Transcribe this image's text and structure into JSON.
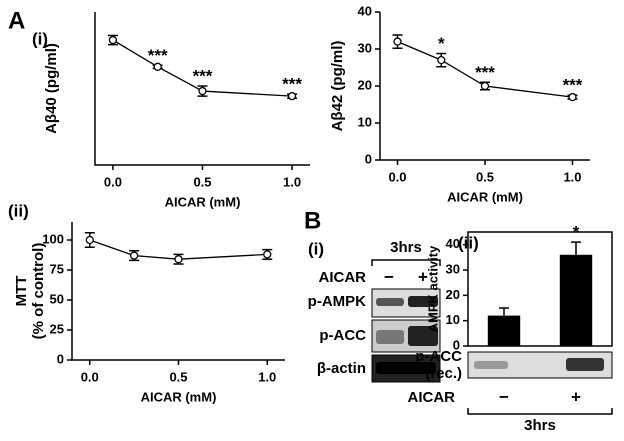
{
  "panels": {
    "a": "A",
    "a_i": "(i)",
    "a_ii": "(ii)",
    "b": "B",
    "b_i": "(i)",
    "b_ii": "(ii)"
  },
  "blot": {
    "time": "3hrs",
    "treatment": "AICAR",
    "lanes": [
      "−",
      "+"
    ],
    "rows": [
      "p-AMPK",
      "p-ACC",
      "β-actin"
    ]
  },
  "chart_data": [
    {
      "type": "line",
      "ylabel": [
        "Aβ40 (pg/ml)"
      ],
      "xlabel": "AICAR (mM)",
      "x": [
        0,
        0.25,
        0.5,
        1.0
      ],
      "xlim": [
        -0.1,
        1.1
      ],
      "xticks": [
        {
          "value": 0,
          "label": "0.0"
        },
        {
          "value": 0.5,
          "label": "0.5"
        },
        {
          "value": 1,
          "label": "1.0"
        }
      ],
      "ylim": [
        0,
        600
      ],
      "series": [
        {
          "color": "#000000",
          "values": [
            490,
            385,
            290,
            270
          ],
          "errors": [
            18,
            6,
            20,
            8
          ],
          "annotations": [
            null,
            "***",
            "***",
            "***"
          ]
        }
      ]
    },
    {
      "type": "line",
      "ylabel": [
        "Aβ42 (pg/ml)"
      ],
      "xlabel": "AICAR (mM)",
      "x": [
        0,
        0.25,
        0.5,
        1.0
      ],
      "xlim": [
        -0.1,
        1.1
      ],
      "xticks": [
        {
          "value": 0,
          "label": "0.0"
        },
        {
          "value": 0.5,
          "label": "0.5"
        },
        {
          "value": 1,
          "label": "1.0"
        }
      ],
      "ylim": [
        0,
        40
      ],
      "yticks": [
        0,
        10,
        20,
        30,
        40
      ],
      "series": [
        {
          "color": "#000000",
          "values": [
            32,
            27,
            20,
            17
          ],
          "errors": [
            1.8,
            1.8,
            1.0,
            0.5
          ],
          "annotations": [
            null,
            "*",
            "***",
            "***"
          ]
        }
      ]
    },
    {
      "type": "line",
      "ylabel": [
        "MTT",
        "(% of control)"
      ],
      "xlabel": "AICAR (mM)",
      "x": [
        0,
        0.25,
        0.5,
        1.0
      ],
      "xlim": [
        -0.1,
        1.1
      ],
      "xticks": [
        {
          "value": 0,
          "label": "0.0"
        },
        {
          "value": 0.5,
          "label": "0.5"
        },
        {
          "value": 1,
          "label": "1.0"
        }
      ],
      "ylim": [
        0,
        115
      ],
      "yticks": [
        0,
        25,
        50,
        75,
        100
      ],
      "series": [
        {
          "color": "#000000",
          "values": [
            100,
            87,
            84,
            88
          ],
          "errors": [
            6,
            4,
            4,
            4
          ]
        }
      ]
    },
    {
      "type": "bar",
      "ylabel": [
        "AMPK activity"
      ],
      "xlabel": "AICAR",
      "group_label": "3hrs",
      "blot_label": [
        "p-ACC",
        "(rec.)"
      ],
      "categories": [
        "−",
        "+"
      ],
      "ylim": [
        0,
        45
      ],
      "yticks": [
        0,
        10,
        20,
        30,
        40
      ],
      "series": [
        {
          "color": "#000000",
          "values": [
            12,
            36
          ],
          "errors": [
            3,
            5
          ],
          "annotations": [
            null,
            "*"
          ]
        }
      ]
    }
  ]
}
